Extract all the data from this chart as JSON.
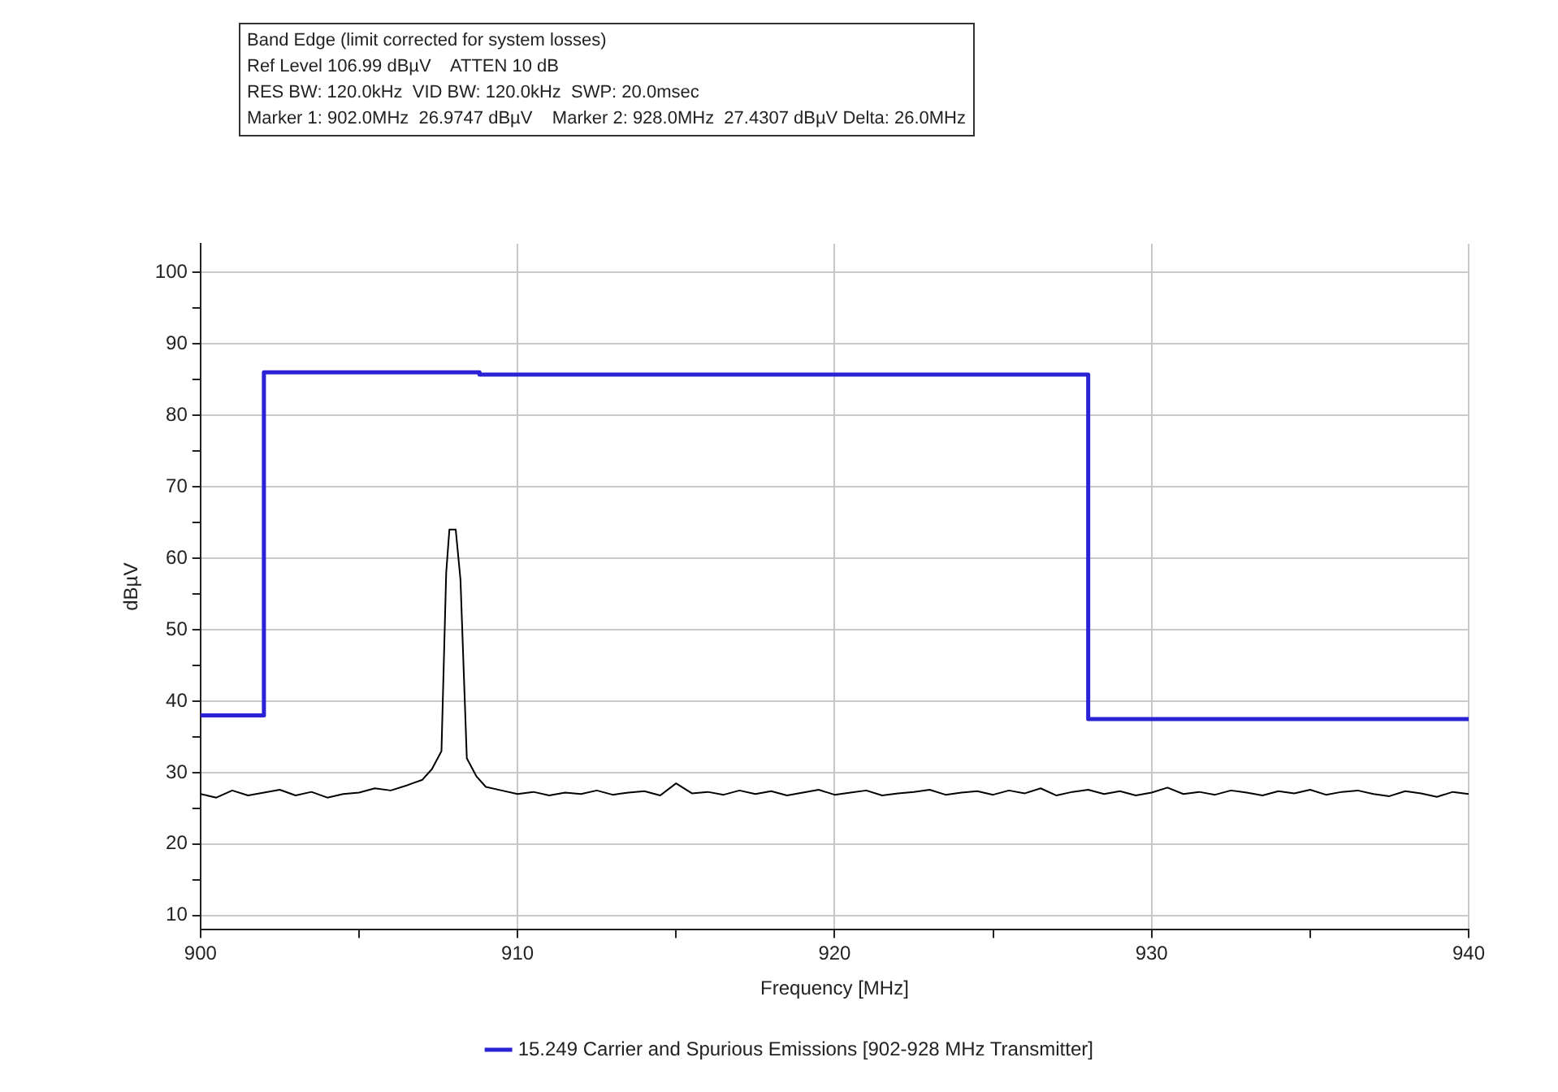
{
  "chart_data": {
    "type": "line",
    "title": "Band Edge (limit corrected for system losses)",
    "annotations": [
      "Ref Level 106.99 dBµV    ATTEN 10 dB",
      "RES BW: 120.0kHz  VID BW: 120.0kHz  SWP: 20.0msec",
      "Marker 1: 902.0MHz  26.9747 dBµV    Marker 2: 928.0MHz  27.4307 dBµV Delta: 26.0MHz"
    ],
    "xlabel": "Frequency [MHz]",
    "ylabel": "dBµV",
    "xlim": [
      900,
      940
    ],
    "xticks": [
      900,
      {
        "value": 905,
        "label": null
      },
      910,
      {
        "value": 915,
        "label": null
      },
      920,
      {
        "value": 925,
        "label": null
      },
      930,
      {
        "value": 935,
        "label": null
      },
      940
    ],
    "ylim": [
      8,
      104
    ],
    "yticks": [
      10,
      {
        "value": 15,
        "label": null
      },
      20,
      {
        "value": 25,
        "label": null
      },
      30,
      {
        "value": 35,
        "label": null
      },
      40,
      {
        "value": 45,
        "label": null
      },
      50,
      {
        "value": 55,
        "label": null
      },
      60,
      {
        "value": 65,
        "label": null
      },
      70,
      {
        "value": 75,
        "label": null
      },
      80,
      {
        "value": 85,
        "label": null
      },
      90,
      {
        "value": 95,
        "label": null
      },
      100
    ],
    "grid": true,
    "legend": "bottom",
    "marker": "none",
    "line_style": "solid",
    "series": [
      {
        "name": "15.249 Carrier and Spurious Emissions [902-928 MHz Transmitter]",
        "type": "step",
        "color": "#2b22d6",
        "x": [
          900,
          902,
          908.8,
          928,
          940
        ],
        "values": [
          38,
          86,
          85.7,
          37.5,
          37.5
        ]
      },
      {
        "color": "#000000",
        "x": [
          900,
          900.5,
          901,
          901.5,
          902,
          902.5,
          903,
          903.5,
          904,
          904.5,
          905,
          905.5,
          906,
          906.5,
          907,
          907.3,
          907.6,
          907.75,
          907.85,
          908.05,
          908.2,
          908.4,
          908.7,
          909,
          909.5,
          910,
          910.5,
          911,
          911.5,
          912,
          912.5,
          913,
          913.5,
          914,
          914.5,
          915,
          915.5,
          916,
          916.5,
          917,
          917.5,
          918,
          918.5,
          919,
          919.5,
          920,
          920.5,
          921,
          921.5,
          922,
          922.5,
          923,
          923.5,
          924,
          924.5,
          925,
          925.5,
          926,
          926.5,
          927,
          927.5,
          928,
          928.5,
          929,
          929.5,
          930,
          930.5,
          931,
          931.5,
          932,
          932.5,
          933,
          933.5,
          934,
          934.5,
          935,
          935.5,
          936,
          936.5,
          937,
          937.5,
          938,
          938.5,
          939,
          939.5,
          940
        ],
        "values": [
          27,
          26.5,
          27.5,
          26.8,
          27.2,
          27.6,
          26.8,
          27.3,
          26.5,
          27,
          27.2,
          27.8,
          27.5,
          28.2,
          29,
          30.5,
          33,
          58,
          64,
          64,
          57,
          32,
          29.5,
          28,
          27.5,
          27,
          27.3,
          26.8,
          27.2,
          27,
          27.5,
          26.9,
          27.2,
          27.4,
          26.8,
          28.5,
          27.1,
          27.3,
          26.9,
          27.5,
          27,
          27.4,
          26.8,
          27.2,
          27.6,
          26.9,
          27.2,
          27.5,
          26.8,
          27.1,
          27.3,
          27.6,
          26.9,
          27.2,
          27.4,
          26.9,
          27.5,
          27.1,
          27.8,
          26.8,
          27.3,
          27.6,
          27,
          27.4,
          26.8,
          27.2,
          27.9,
          27,
          27.3,
          26.9,
          27.5,
          27.2,
          26.8,
          27.4,
          27.1,
          27.6,
          26.9,
          27.3,
          27.5,
          27,
          26.7,
          27.4,
          27.1,
          26.6,
          27.3,
          27
        ]
      }
    ]
  }
}
